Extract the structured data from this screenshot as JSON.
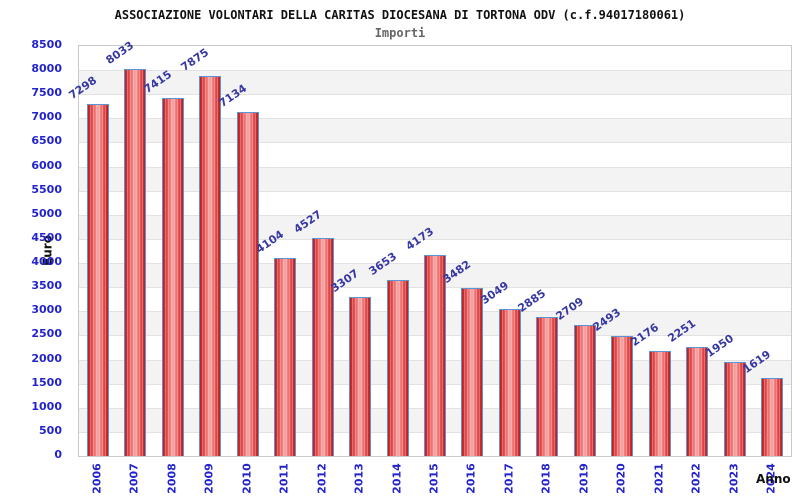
{
  "header": {
    "title": "ASSOCIAZIONE VOLONTARI DELLA CARITAS DIOCESANA DI TORTONA ODV (c.f.94017180061)",
    "subtitle": "Importi"
  },
  "chart_data": {
    "type": "bar",
    "title": "ASSOCIAZIONE VOLONTARI DELLA CARITAS DIOCESANA DI TORTONA ODV (c.f.94017180061)",
    "subtitle": "Importi",
    "xlabel": "Anno",
    "ylabel": "Euro",
    "categories": [
      "2006",
      "2007",
      "2008",
      "2009",
      "2010",
      "2011",
      "2012",
      "2013",
      "2014",
      "2015",
      "2016",
      "2017",
      "2018",
      "2019",
      "2020",
      "2021",
      "2022",
      "2023",
      "2024"
    ],
    "values": [
      7298,
      8033,
      7415,
      7875,
      7134,
      4104,
      4527,
      3307,
      3653,
      4173,
      3482,
      3049,
      2885,
      2709,
      2493,
      2176,
      2251,
      1950,
      1619
    ],
    "ylim": [
      0,
      8500
    ],
    "ytick_step": 500,
    "grid": "horizontal-bands",
    "legend": "none",
    "colors": {
      "bar_edge": "#5b95d6",
      "bar_dark": "#b91c1c",
      "bar_light": "#f6a8a8",
      "tick_label": "#2323cd",
      "value_label": "#3737a4",
      "band_gray": "#f3f3f3",
      "band_white": "#ffffff",
      "gridline": "#e2e2e2",
      "plot_border": "#c9c9c9",
      "title": "#111111",
      "subtitle": "#666666"
    }
  }
}
